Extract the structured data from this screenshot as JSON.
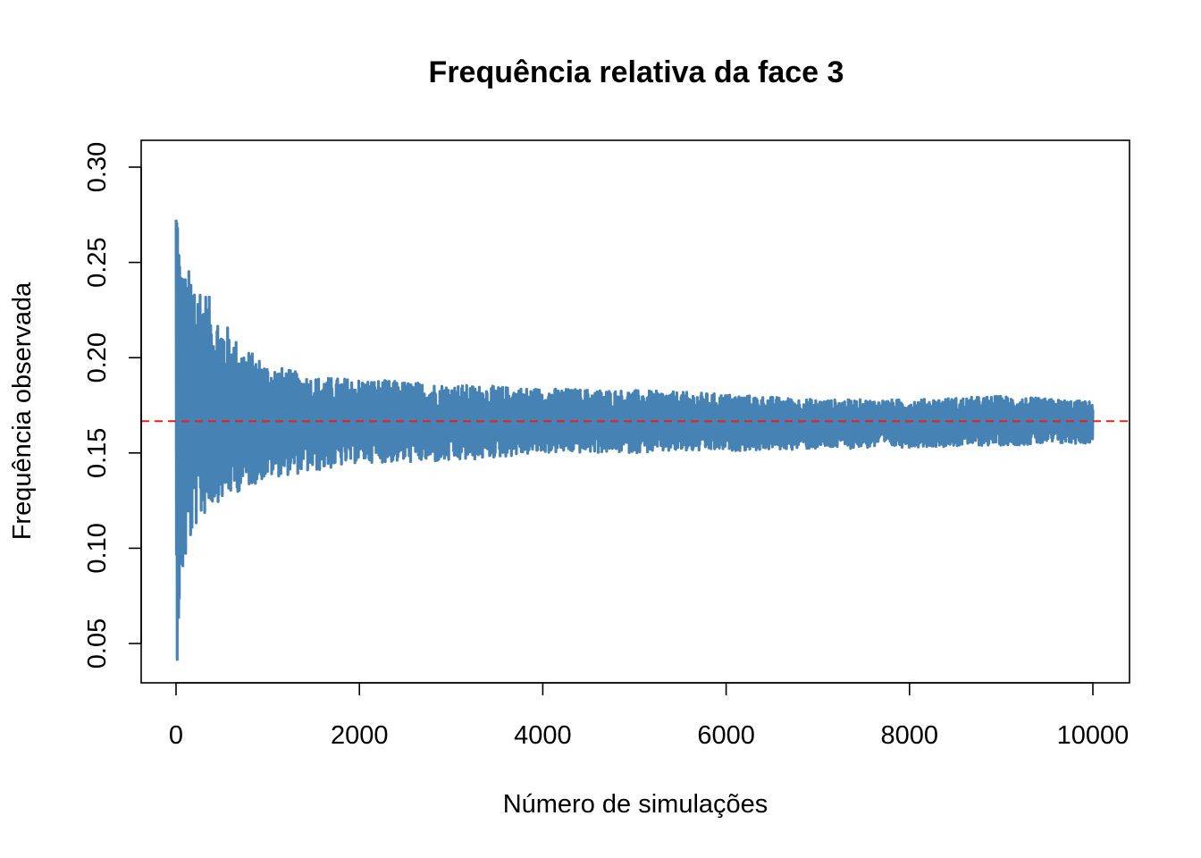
{
  "chart_data": {
    "type": "line",
    "title": "Frequência relativa da face 3",
    "xlabel": "Número de simulações",
    "ylabel": "Frequência observada",
    "xlim": [
      0,
      10000
    ],
    "ylim": [
      0.03,
      0.31
    ],
    "x_ticks": [
      0,
      2000,
      4000,
      6000,
      8000,
      10000
    ],
    "y_ticks": [
      "0.05",
      "0.10",
      "0.15",
      "0.20",
      "0.25",
      "0.30"
    ],
    "reference_line": {
      "y": 0.1667,
      "color": "#e8211c",
      "style": "dashed"
    },
    "series": [
      {
        "color": "#4682b4",
        "description_of_shape": "relative frequency oscillating around 1/6, wide at start and narrowing",
        "x_start": 1,
        "x_end": 10000,
        "envelope": {
          "x": [
            10,
            50,
            100,
            200,
            400,
            700,
            1000,
            1500,
            2000,
            3000,
            4000,
            5000,
            6000,
            7000,
            8000,
            9000,
            10000
          ],
          "upper": [
            0.303,
            0.25,
            0.245,
            0.249,
            0.228,
            0.207,
            0.197,
            0.19,
            0.189,
            0.186,
            0.184,
            0.183,
            0.181,
            0.178,
            0.178,
            0.18,
            0.177
          ],
          "lower": [
            0.039,
            0.075,
            0.09,
            0.11,
            0.123,
            0.13,
            0.137,
            0.14,
            0.145,
            0.145,
            0.15,
            0.15,
            0.151,
            0.152,
            0.153,
            0.154,
            0.155
          ]
        }
      }
    ],
    "grid": false,
    "legend": "none"
  }
}
